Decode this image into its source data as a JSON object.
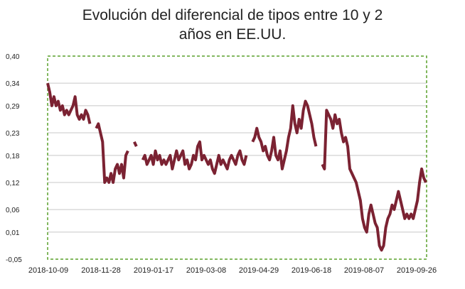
{
  "chart_data": {
    "type": "line",
    "title": "Evolución del diferencial de tipos entre 10 y 2\naños en EE.UU.",
    "xlabel": "",
    "ylabel": "",
    "ylim": [
      -0.05,
      0.4
    ],
    "y_ticks": [
      "0,40",
      "0,34",
      "0,29",
      "0,23",
      "0,18",
      "0,12",
      "0,06",
      "0,01",
      "-0,05"
    ],
    "y_tick_values": [
      0.4,
      0.34,
      0.29,
      0.23,
      0.18,
      0.12,
      0.06,
      0.01,
      -0.05
    ],
    "x_ticks": [
      "2018-10-09",
      "2018-11-28",
      "2019-01-17",
      "2019-03-08",
      "2019-04-29",
      "2019-06-18",
      "2019-08-07",
      "2019-09-26"
    ],
    "grid": "horizontal",
    "legend": "none",
    "colors": {
      "line": "#7b2232",
      "plot_border": "#5aa02c",
      "grid": "#c8c8c8"
    },
    "series": [
      {
        "segments": [
          [
            0.34,
            0.32,
            0.29,
            0.31,
            0.29,
            0.3,
            0.28,
            0.29,
            0.27,
            0.28,
            0.27,
            0.28,
            0.29,
            0.31,
            0.27,
            0.26,
            0.27,
            0.26,
            0.28,
            0.27,
            0.25
          ],
          [
            0.24,
            0.25,
            0.23,
            0.21,
            0.12,
            0.13,
            0.12,
            0.14,
            0.12,
            0.15,
            0.16,
            0.14,
            0.16,
            0.13,
            0.18,
            0.19
          ],
          [
            0.21,
            0.2
          ],
          [
            0.17,
            0.18,
            0.16,
            0.17,
            0.18,
            0.16,
            0.19,
            0.17,
            0.18,
            0.16,
            0.17,
            0.16,
            0.17,
            0.18,
            0.15,
            0.17,
            0.19,
            0.17,
            0.18,
            0.19,
            0.16,
            0.17,
            0.15,
            0.16,
            0.18,
            0.17,
            0.2,
            0.21,
            0.17,
            0.18,
            0.17,
            0.16,
            0.17,
            0.15,
            0.14,
            0.16,
            0.18,
            0.16,
            0.17,
            0.16,
            0.15,
            0.17,
            0.18,
            0.17,
            0.16,
            0.18,
            0.19,
            0.17,
            0.16,
            0.18
          ],
          [
            0.21,
            0.22,
            0.24,
            0.22,
            0.21,
            0.19,
            0.2,
            0.18,
            0.17,
            0.19,
            0.22,
            0.18,
            0.17,
            0.19,
            0.15,
            0.17,
            0.19,
            0.22,
            0.24,
            0.29,
            0.25,
            0.23,
            0.26,
            0.24,
            0.28,
            0.3,
            0.29,
            0.27,
            0.25,
            0.22,
            0.2
          ],
          [
            0.16,
            0.15,
            0.28,
            0.27,
            0.26,
            0.24,
            0.27,
            0.25,
            0.26,
            0.23,
            0.21,
            0.22,
            0.2,
            0.15,
            0.14,
            0.13,
            0.12,
            0.1,
            0.08,
            0.04,
            0.02,
            0.01,
            0.05,
            0.07,
            0.05,
            0.03,
            0.02,
            -0.02,
            -0.03,
            -0.02,
            0.02,
            0.04,
            0.05,
            0.07,
            0.06,
            0.08,
            0.1,
            0.08,
            0.06,
            0.04,
            0.05,
            0.04,
            0.05,
            0.04,
            0.06,
            0.08,
            0.12,
            0.15,
            0.13,
            0.12
          ]
        ]
      }
    ]
  }
}
